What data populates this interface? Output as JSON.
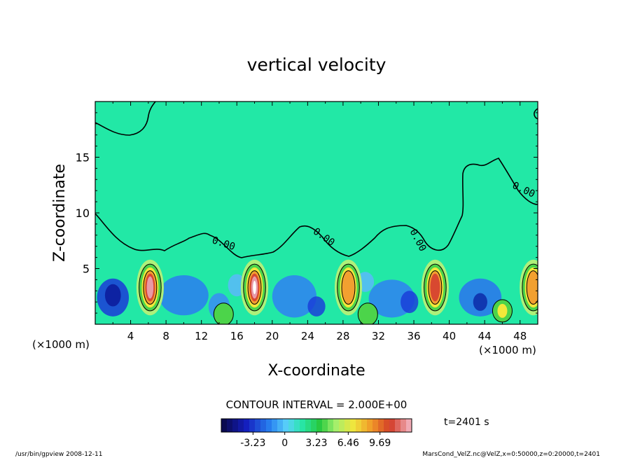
{
  "chart_data": {
    "type": "heatmap",
    "title": "vertical velocity",
    "xlabel": "X-coordinate",
    "ylabel": "Z-coordinate",
    "x_unit": "(×1000 m)",
    "x_unit_right": "(×1000 m)",
    "xlim": [
      0,
      50
    ],
    "ylim": [
      0,
      20
    ],
    "x_ticks": [
      "4",
      "8",
      "12",
      "16",
      "20",
      "24",
      "28",
      "32",
      "36",
      "40",
      "44",
      "48"
    ],
    "y_ticks": [
      "5",
      "10",
      "15"
    ],
    "contour_interval_text": "CONTOUR INTERVAL = 2.000E+00",
    "contour_labels": [
      "0.00",
      "0.00",
      "0.00",
      "0.00",
      "0.00"
    ],
    "colorbar_ticks": [
      "-3.23",
      "0",
      "3.23",
      "6.46",
      "9.69"
    ],
    "colorbar_range": [
      -6.46,
      12.92
    ],
    "time_label": "t=2401 s",
    "updrafts": [
      {
        "x": 6.2,
        "peak": 10.5
      },
      {
        "x": 18.0,
        "peak": 12.9
      },
      {
        "x": 28.6,
        "peak": 8.5
      },
      {
        "x": 38.4,
        "peak": 9.0
      },
      {
        "x": 49.5,
        "peak": 7.5
      }
    ],
    "colors": {
      "background_field": "#22e8a6",
      "contour": "#000000"
    },
    "footer_left": "/usr/bin/gpview   2008-12-11",
    "footer_right": "MarsCond_VelZ.nc@VelZ,x=0:50000,z=0:20000,t=2401"
  }
}
